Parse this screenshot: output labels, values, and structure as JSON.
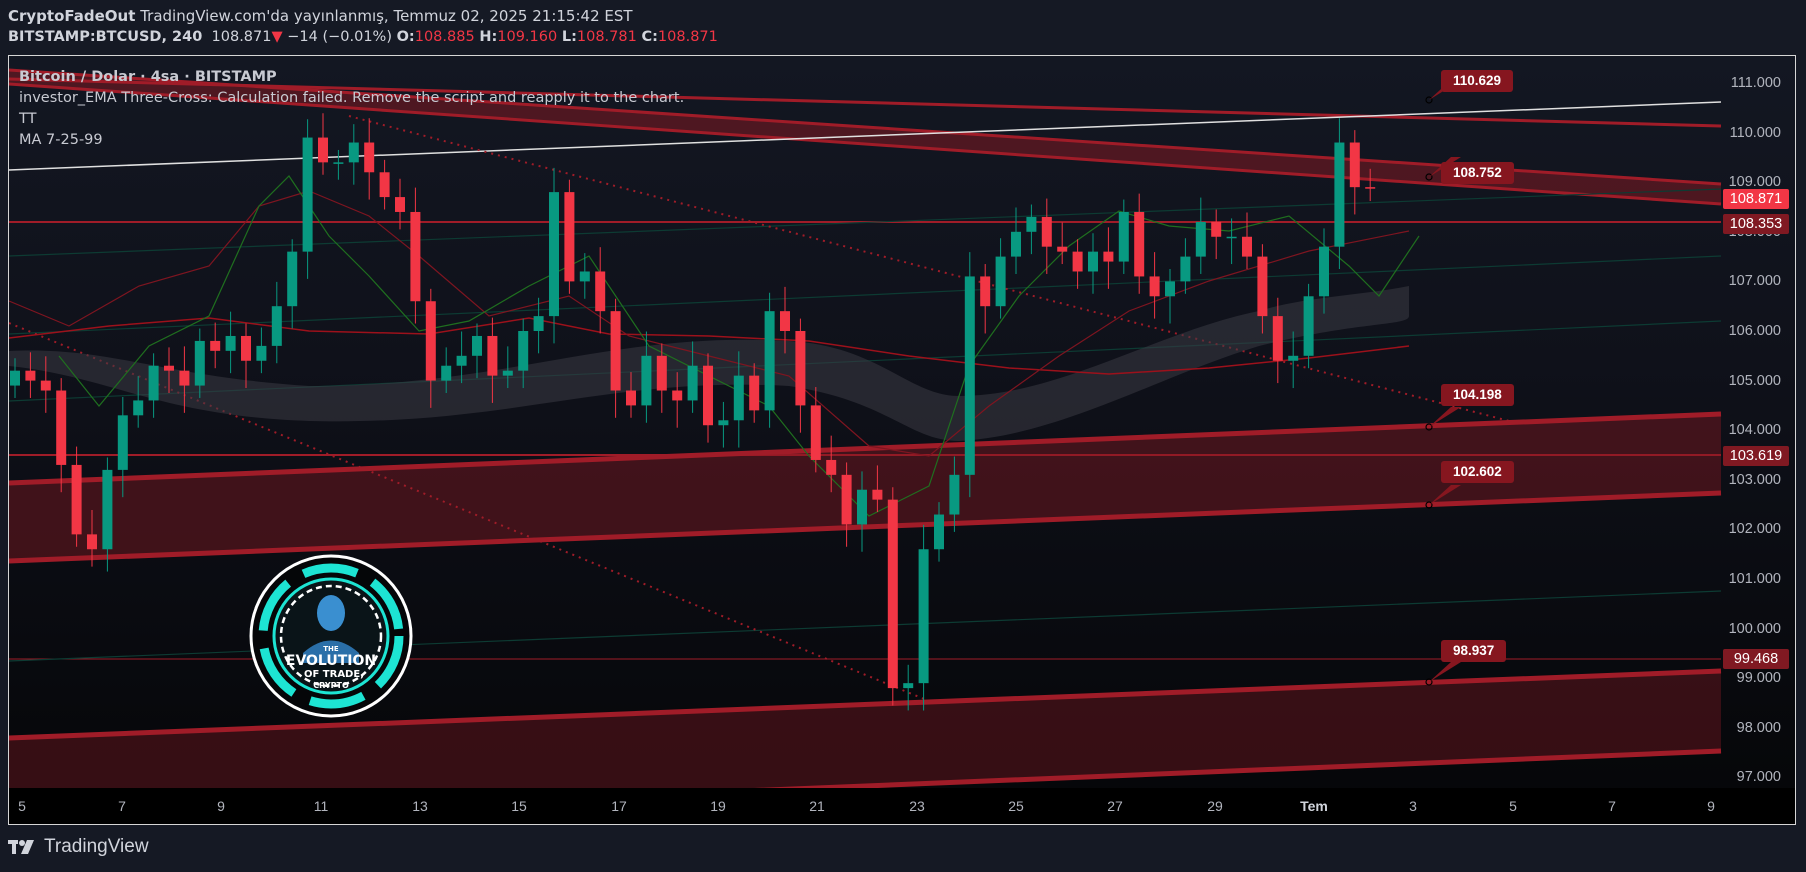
{
  "header": {
    "author": "CryptoFadeOut",
    "published": "TradingView.com'da yayınlanmış, Temmuz 02, 2025 21:15:42 EST",
    "symbol": "BITSTAMP:BTCUSD, 240",
    "last": "108.871",
    "change_icon": "triangle-down-icon",
    "change": "−14 (−0.01%)",
    "o_label": "O:",
    "o": "108.885",
    "h_label": "H:",
    "h": "109.160",
    "l_label": "L:",
    "l": "108.781",
    "c_label": "C:",
    "c": "108.871"
  },
  "legend": {
    "title": "Bitcoin / Dolar · 4sa · BITSTAMP",
    "error": "investor_EMA Three-Cross: Calculation failed. Remove the script and reapply it to the chart.",
    "indicator1": "TT",
    "indicator2": "MA 7-25-99"
  },
  "price_axis": {
    "ticks": [
      "111.000",
      "110.000",
      "109.000",
      "108.000",
      "107.000",
      "106.000",
      "105.000",
      "104.000",
      "103.000",
      "102.000",
      "101.000",
      "100.000",
      "99.000",
      "98.000",
      "97.000"
    ],
    "tags": [
      {
        "value": "108.871",
        "color": "#f23645"
      },
      {
        "value": "108.353",
        "color": "#801922"
      },
      {
        "value": "103.619",
        "color": "#801922"
      },
      {
        "value": "99.468",
        "color": "#801922"
      }
    ]
  },
  "time_axis": {
    "ticks": [
      "5",
      "7",
      "9",
      "11",
      "13",
      "15",
      "17",
      "19",
      "21",
      "23",
      "25",
      "27",
      "29",
      "Tem",
      "3",
      "5",
      "7",
      "9"
    ]
  },
  "callouts": [
    "110.629",
    "108.752",
    "104.198",
    "102.602",
    "98.937"
  ],
  "logo": {
    "line1": "THE",
    "line2": "EVOLUTION",
    "line3": "OF TRADE,",
    "line4": "CRYPTO"
  },
  "footer": {
    "brand": "TradingView"
  },
  "colors": {
    "up": "#089981",
    "down": "#f23645",
    "zone": "#801922",
    "background": "#131722"
  },
  "chart_data": {
    "type": "candlestick",
    "title": "Bitcoin / Dolar · 4sa · BITSTAMP",
    "xlabel": "",
    "ylabel": "",
    "ylim": [
      97,
      111
    ],
    "x_ticks": [
      "5",
      "7",
      "9",
      "11",
      "13",
      "15",
      "17",
      "19",
      "21",
      "23",
      "25",
      "27",
      "29",
      "Tem",
      "3",
      "5",
      "7",
      "9"
    ],
    "last_ohlc": {
      "open": 108.885,
      "high": 109.16,
      "low": 108.781,
      "close": 108.871
    },
    "levels": [
      108.871,
      108.353,
      103.619,
      99.468
    ],
    "annotations": [
      110.629,
      108.752,
      104.198,
      102.602,
      98.937
    ],
    "approx_closes": [
      105.2,
      105.0,
      104.8,
      103.3,
      101.9,
      101.6,
      103.2,
      104.3,
      104.6,
      105.3,
      105.2,
      104.9,
      105.8,
      105.6,
      105.9,
      105.4,
      105.7,
      106.5,
      107.6,
      109.9,
      109.4,
      109.4,
      109.8,
      109.2,
      108.7,
      108.4,
      106.6,
      105.0,
      105.3,
      105.5,
      105.9,
      105.1,
      105.2,
      106.0,
      106.3,
      108.8,
      107.0,
      107.2,
      106.4,
      104.8,
      104.5,
      105.5,
      104.8,
      104.6,
      105.3,
      104.1,
      104.2,
      105.1,
      104.4,
      106.4,
      106.0,
      104.5,
      103.4,
      103.1,
      102.1,
      102.8,
      102.6,
      98.8,
      98.9,
      101.6,
      102.3,
      103.1,
      107.1,
      106.5,
      107.5,
      108.0,
      108.3,
      107.7,
      107.6,
      107.2,
      107.6,
      107.4,
      108.4,
      107.1,
      106.7,
      107.0,
      107.5,
      108.2,
      107.9,
      107.9,
      107.5,
      106.3,
      105.4,
      105.5,
      106.7,
      107.7,
      109.8,
      108.9,
      108.87
    ]
  }
}
